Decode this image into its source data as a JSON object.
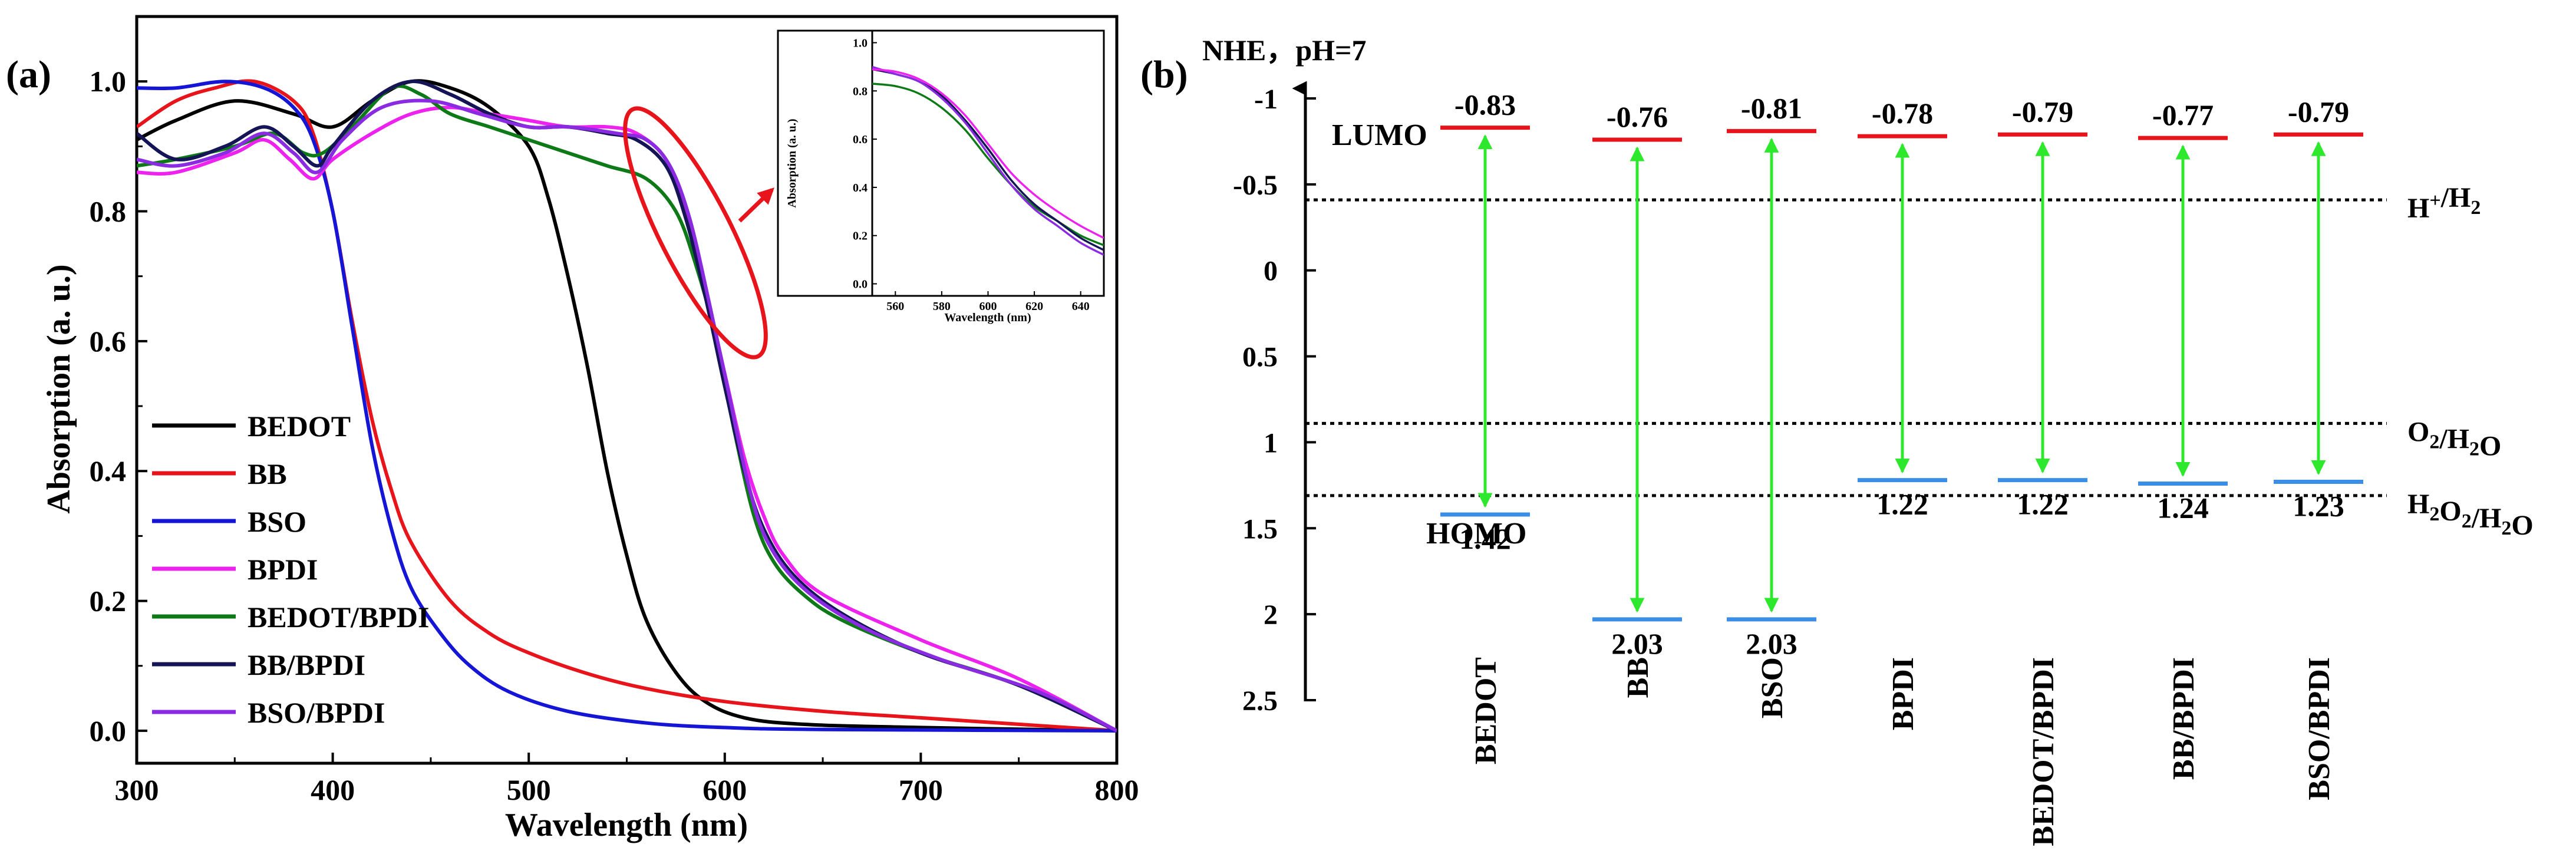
{
  "chart_data": [
    {
      "panel": "(a)",
      "type": "line",
      "title": "",
      "xlabel": "Wavelength (nm)",
      "ylabel": "Absorption (a. u.)",
      "xlim": [
        300,
        800
      ],
      "ylim": [
        -0.05,
        1.1
      ],
      "x_ticks": [
        "300",
        "400",
        "500",
        "600",
        "700",
        "800"
      ],
      "y_ticks": [
        "0.0",
        "0.2",
        "0.4",
        "0.6",
        "0.8",
        "1.0"
      ],
      "legend_position": "lower-left",
      "series": [
        {
          "name": "BEDOT",
          "color": "#000000",
          "points": [
            [
              300,
              0.91
            ],
            [
              320,
              0.94
            ],
            [
              350,
              0.97
            ],
            [
              380,
              0.95
            ],
            [
              400,
              0.93
            ],
            [
              420,
              0.97
            ],
            [
              440,
              1.0
            ],
            [
              460,
              0.99
            ],
            [
              480,
              0.96
            ],
            [
              500,
              0.9
            ],
            [
              510,
              0.82
            ],
            [
              520,
              0.7
            ],
            [
              530,
              0.56
            ],
            [
              540,
              0.4
            ],
            [
              550,
              0.27
            ],
            [
              560,
              0.17
            ],
            [
              575,
              0.09
            ],
            [
              590,
              0.045
            ],
            [
              610,
              0.02
            ],
            [
              640,
              0.01
            ],
            [
              700,
              0.005
            ],
            [
              800,
              0.0
            ]
          ]
        },
        {
          "name": "BB",
          "color": "#e8141b",
          "points": [
            [
              300,
              0.93
            ],
            [
              320,
              0.97
            ],
            [
              340,
              0.99
            ],
            [
              360,
              1.0
            ],
            [
              380,
              0.97
            ],
            [
              390,
              0.92
            ],
            [
              400,
              0.8
            ],
            [
              410,
              0.63
            ],
            [
              420,
              0.48
            ],
            [
              430,
              0.37
            ],
            [
              440,
              0.29
            ],
            [
              460,
              0.2
            ],
            [
              480,
              0.15
            ],
            [
              500,
              0.12
            ],
            [
              530,
              0.088
            ],
            [
              560,
              0.065
            ],
            [
              600,
              0.045
            ],
            [
              650,
              0.03
            ],
            [
              700,
              0.02
            ],
            [
              750,
              0.01
            ],
            [
              800,
              0.0
            ]
          ]
        },
        {
          "name": "BSO",
          "color": "#1515d6",
          "points": [
            [
              300,
              0.99
            ],
            [
              320,
              0.99
            ],
            [
              345,
              1.0
            ],
            [
              365,
              0.99
            ],
            [
              380,
              0.96
            ],
            [
              390,
              0.91
            ],
            [
              400,
              0.8
            ],
            [
              410,
              0.62
            ],
            [
              420,
              0.44
            ],
            [
              430,
              0.31
            ],
            [
              440,
              0.22
            ],
            [
              455,
              0.15
            ],
            [
              470,
              0.1
            ],
            [
              490,
              0.06
            ],
            [
              520,
              0.03
            ],
            [
              560,
              0.012
            ],
            [
              600,
              0.005
            ],
            [
              650,
              0.002
            ],
            [
              800,
              0.0
            ]
          ]
        },
        {
          "name": "BPDI",
          "color": "#ee22ee",
          "points": [
            [
              300,
              0.86
            ],
            [
              320,
              0.86
            ],
            [
              350,
              0.89
            ],
            [
              365,
              0.91
            ],
            [
              378,
              0.88
            ],
            [
              390,
              0.85
            ],
            [
              400,
              0.88
            ],
            [
              420,
              0.92
            ],
            [
              440,
              0.95
            ],
            [
              460,
              0.96
            ],
            [
              480,
              0.95
            ],
            [
              500,
              0.94
            ],
            [
              520,
              0.93
            ],
            [
              540,
              0.93
            ],
            [
              555,
              0.92
            ],
            [
              570,
              0.88
            ],
            [
              580,
              0.8
            ],
            [
              590,
              0.68
            ],
            [
              600,
              0.55
            ],
            [
              610,
              0.42
            ],
            [
              620,
              0.33
            ],
            [
              630,
              0.27
            ],
            [
              650,
              0.21
            ],
            [
              700,
              0.14
            ],
            [
              750,
              0.08
            ],
            [
              800,
              0.0
            ]
          ]
        },
        {
          "name": "BEDOT/BPDI",
          "color": "#0e7a17",
          "points": [
            [
              300,
              0.87
            ],
            [
              320,
              0.88
            ],
            [
              350,
              0.9
            ],
            [
              370,
              0.92
            ],
            [
              385,
              0.89
            ],
            [
              395,
              0.89
            ],
            [
              410,
              0.93
            ],
            [
              430,
              0.99
            ],
            [
              445,
              0.98
            ],
            [
              460,
              0.95
            ],
            [
              480,
              0.93
            ],
            [
              500,
              0.91
            ],
            [
              520,
              0.89
            ],
            [
              540,
              0.87
            ],
            [
              560,
              0.85
            ],
            [
              575,
              0.8
            ],
            [
              585,
              0.72
            ],
            [
              595,
              0.61
            ],
            [
              605,
              0.46
            ],
            [
              615,
              0.33
            ],
            [
              625,
              0.26
            ],
            [
              640,
              0.21
            ],
            [
              660,
              0.17
            ],
            [
              700,
              0.12
            ],
            [
              750,
              0.07
            ],
            [
              800,
              0.0
            ]
          ]
        },
        {
          "name": "BB/BPDI",
          "color": "#141456",
          "points": [
            [
              300,
              0.92
            ],
            [
              320,
              0.88
            ],
            [
              345,
              0.9
            ],
            [
              365,
              0.93
            ],
            [
              380,
              0.9
            ],
            [
              392,
              0.87
            ],
            [
              400,
              0.9
            ],
            [
              420,
              0.97
            ],
            [
              440,
              1.0
            ],
            [
              460,
              0.98
            ],
            [
              480,
              0.95
            ],
            [
              500,
              0.93
            ],
            [
              520,
              0.93
            ],
            [
              540,
              0.92
            ],
            [
              555,
              0.91
            ],
            [
              570,
              0.87
            ],
            [
              580,
              0.79
            ],
            [
              590,
              0.67
            ],
            [
              600,
              0.53
            ],
            [
              610,
              0.4
            ],
            [
              620,
              0.31
            ],
            [
              635,
              0.24
            ],
            [
              660,
              0.18
            ],
            [
              700,
              0.12
            ],
            [
              750,
              0.07
            ],
            [
              800,
              0.0
            ]
          ]
        },
        {
          "name": "BSO/BPDI",
          "color": "#8a2be2",
          "points": [
            [
              300,
              0.88
            ],
            [
              320,
              0.87
            ],
            [
              345,
              0.89
            ],
            [
              365,
              0.92
            ],
            [
              380,
              0.89
            ],
            [
              392,
              0.86
            ],
            [
              405,
              0.91
            ],
            [
              425,
              0.96
            ],
            [
              450,
              0.97
            ],
            [
              475,
              0.95
            ],
            [
              500,
              0.93
            ],
            [
              520,
              0.93
            ],
            [
              545,
              0.92
            ],
            [
              560,
              0.91
            ],
            [
              572,
              0.87
            ],
            [
              582,
              0.79
            ],
            [
              592,
              0.66
            ],
            [
              602,
              0.52
            ],
            [
              612,
              0.38
            ],
            [
              622,
              0.29
            ],
            [
              640,
              0.22
            ],
            [
              670,
              0.16
            ],
            [
              710,
              0.11
            ],
            [
              760,
              0.06
            ],
            [
              800,
              0.0
            ]
          ]
        }
      ],
      "inset": {
        "xlabel": "Wavelength (nm)",
        "ylabel": "Absorption (a. u.)",
        "xlim": [
          550,
          650
        ],
        "ylim": [
          -0.05,
          1.05
        ],
        "x_ticks": [
          "560",
          "580",
          "600",
          "620",
          "640"
        ],
        "y_ticks": [
          "0.0",
          "0.2",
          "0.4",
          "0.6",
          "0.8",
          "1.0"
        ],
        "series": [
          {
            "name": "BEDOT/BPDI",
            "color": "#0e7a17",
            "points": [
              [
                550,
                0.83
              ],
              [
                560,
                0.82
              ],
              [
                570,
                0.79
              ],
              [
                580,
                0.73
              ],
              [
                590,
                0.64
              ],
              [
                600,
                0.52
              ],
              [
                610,
                0.41
              ],
              [
                620,
                0.32
              ],
              [
                630,
                0.26
              ],
              [
                640,
                0.2
              ],
              [
                650,
                0.16
              ]
            ]
          },
          {
            "name": "BB/BPDI",
            "color": "#141456",
            "points": [
              [
                550,
                0.89
              ],
              [
                560,
                0.87
              ],
              [
                570,
                0.84
              ],
              [
                580,
                0.78
              ],
              [
                590,
                0.68
              ],
              [
                600,
                0.56
              ],
              [
                610,
                0.43
              ],
              [
                620,
                0.33
              ],
              [
                630,
                0.26
              ],
              [
                640,
                0.19
              ],
              [
                650,
                0.14
              ]
            ]
          },
          {
            "name": "BSO/BPDI",
            "color": "#8a2be2",
            "points": [
              [
                550,
                0.9
              ],
              [
                560,
                0.87
              ],
              [
                570,
                0.84
              ],
              [
                580,
                0.77
              ],
              [
                590,
                0.67
              ],
              [
                600,
                0.54
              ],
              [
                610,
                0.41
              ],
              [
                620,
                0.31
              ],
              [
                630,
                0.24
              ],
              [
                640,
                0.17
              ],
              [
                650,
                0.12
              ]
            ]
          },
          {
            "name": "BPDI",
            "color": "#ee22ee",
            "points": [
              [
                550,
                0.89
              ],
              [
                560,
                0.88
              ],
              [
                570,
                0.85
              ],
              [
                580,
                0.79
              ],
              [
                590,
                0.7
              ],
              [
                600,
                0.58
              ],
              [
                610,
                0.46
              ],
              [
                620,
                0.37
              ],
              [
                630,
                0.3
              ],
              [
                640,
                0.24
              ],
              [
                650,
                0.19
              ]
            ]
          }
        ]
      },
      "highlight_color": "#e8141b"
    },
    {
      "panel": "(b)",
      "type": "energy-level diagram",
      "ylabel": "NHE，pH=7",
      "ylim": [
        -1,
        2.5
      ],
      "y_ticks": [
        "-1",
        "-0.5",
        "0",
        "0.5",
        "1",
        "1.5",
        "2",
        "2.5"
      ],
      "lumo_label": "LUMO",
      "homo_label": "HOMO",
      "lumo_color": "#e8141b",
      "homo_color": "#3a8ee6",
      "arrow_color": "#2ee82e",
      "reference_lines": [
        {
          "label_parts": [
            "H",
            "+",
            "/H",
            "2",
            ""
          ],
          "value": -0.41
        },
        {
          "label_parts": [
            "O",
            "2",
            "/H",
            "2",
            "O"
          ],
          "value": 0.89
        },
        {
          "label_parts": [
            "H",
            "2",
            "O",
            "2",
            "/H",
            "2",
            "O"
          ],
          "value": 1.31
        }
      ],
      "materials": [
        {
          "name": "BEDOT",
          "lumo": -0.83,
          "lumo_label": "-0.83",
          "homo": 1.42,
          "homo_label": "1.42"
        },
        {
          "name": "BB",
          "lumo": -0.76,
          "lumo_label": "-0.76",
          "homo": 2.03,
          "homo_label": "2.03"
        },
        {
          "name": "BSO",
          "lumo": -0.81,
          "lumo_label": "-0.81",
          "homo": 2.03,
          "homo_label": "2.03"
        },
        {
          "name": "BPDI",
          "lumo": -0.78,
          "lumo_label": "-0.78",
          "homo": 1.22,
          "homo_label": "1.22"
        },
        {
          "name": "BEDOT/BPDI",
          "lumo": -0.79,
          "lumo_label": "-0.79",
          "homo": 1.22,
          "homo_label": "1.22"
        },
        {
          "name": "BB/BPDI",
          "lumo": -0.77,
          "lumo_label": "-0.77",
          "homo": 1.24,
          "homo_label": "1.24"
        },
        {
          "name": "BSO/BPDI",
          "lumo": -0.79,
          "lumo_label": "-0.79",
          "homo": 1.23,
          "homo_label": "1.23"
        }
      ]
    }
  ]
}
